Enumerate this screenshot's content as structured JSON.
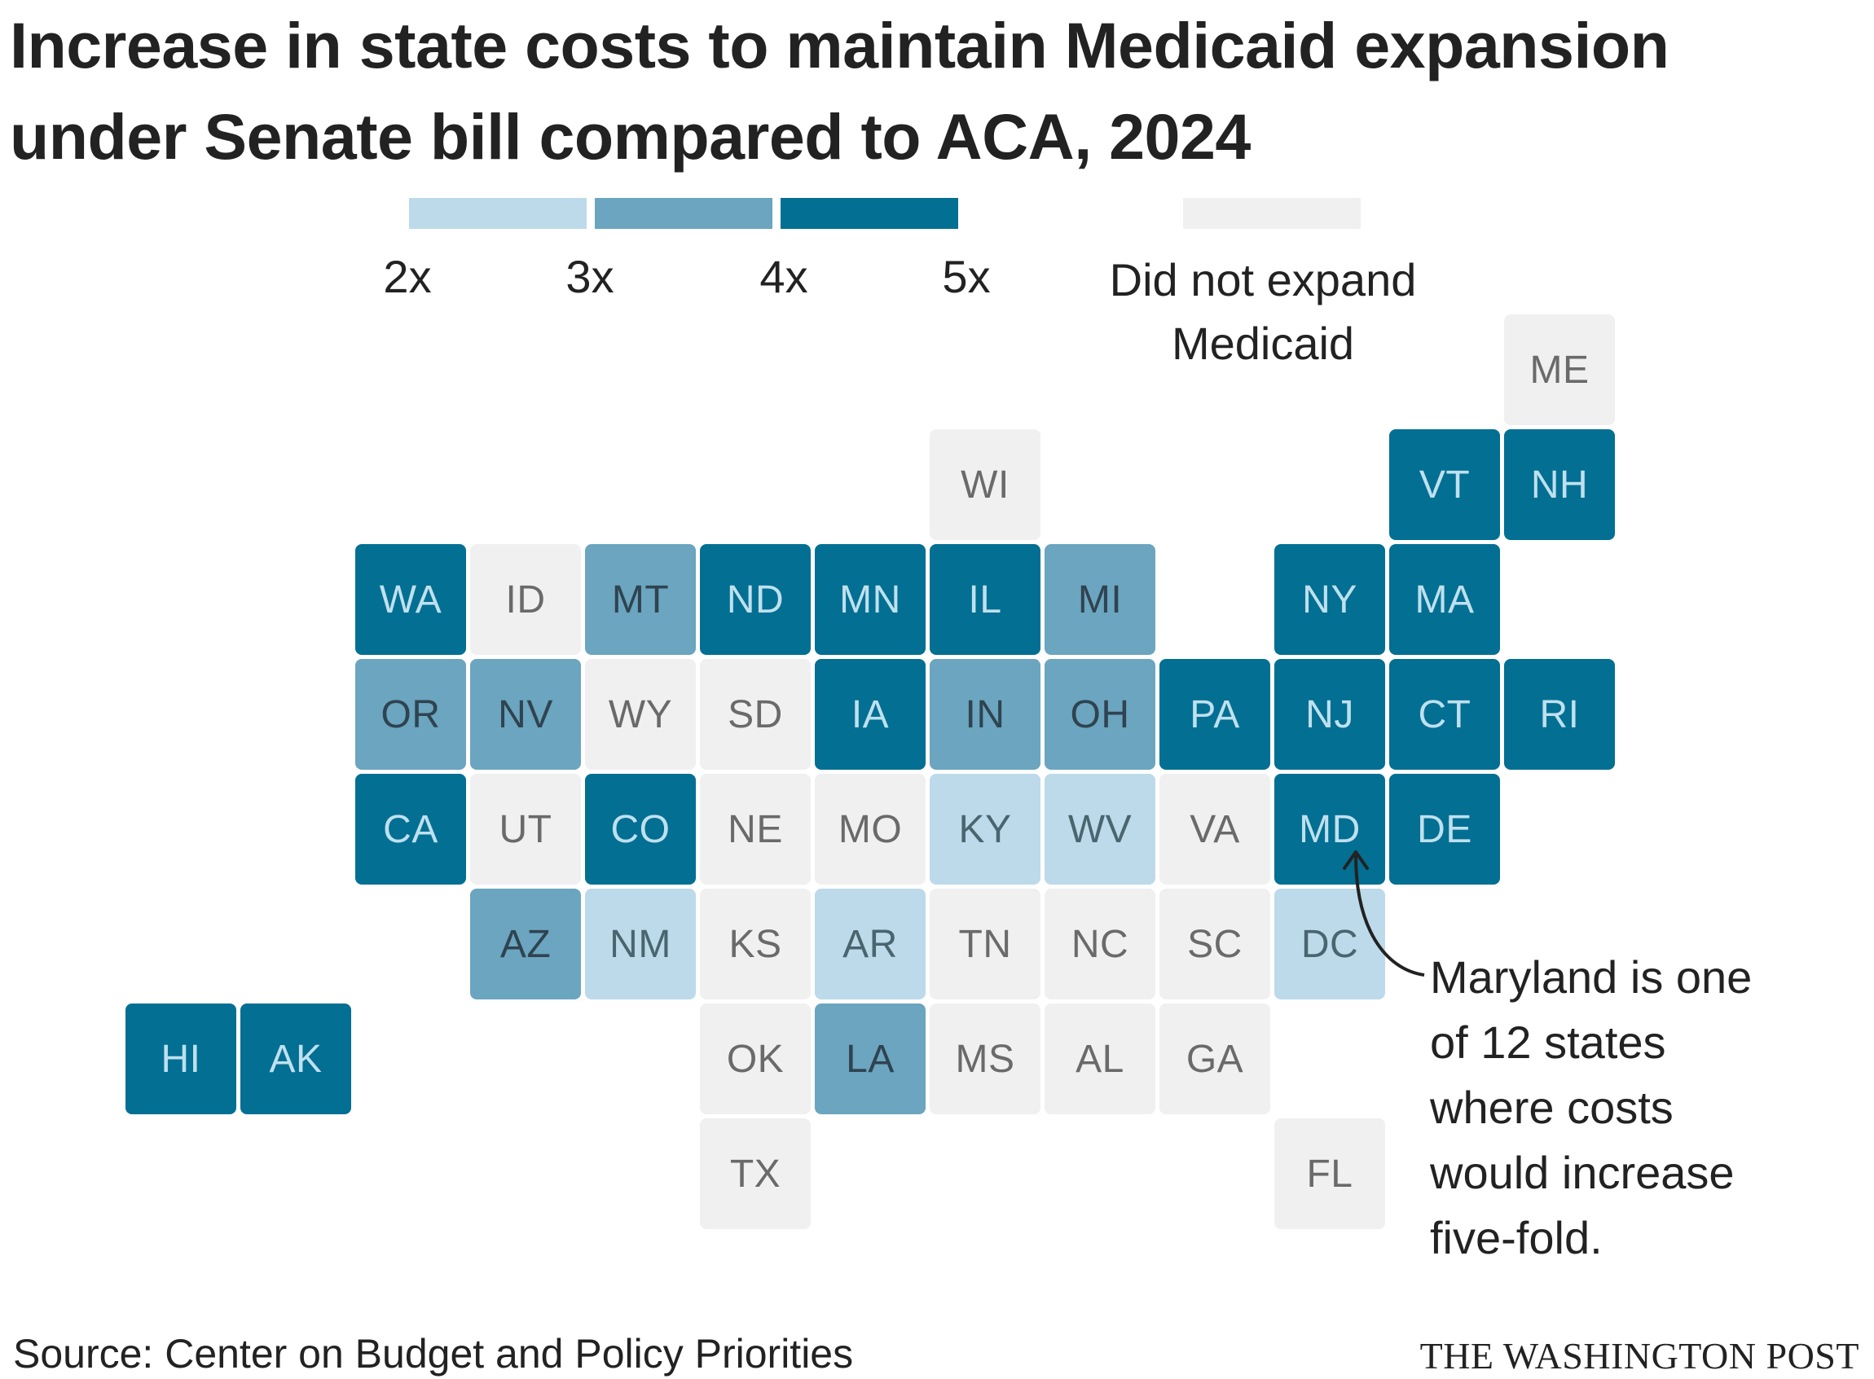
{
  "title": "Increase in state costs to maintain Medicaid expansion under Senate bill compared to ACA, 2024",
  "legend": {
    "ticks": [
      "2x",
      "3x",
      "4x",
      "5x"
    ],
    "not_expanded_label": "Did not expand Medicaid",
    "colors": {
      "bin_2_3": "#bcdaea",
      "bin_3_4": "#6ba5bf",
      "bin_4_5": "#026f93",
      "not_expanded": "#f0f0f0"
    }
  },
  "chart_data": {
    "type": "tile-map",
    "bins": [
      {
        "key": "bin_2_3",
        "range": [
          2,
          3
        ]
      },
      {
        "key": "bin_3_4",
        "range": [
          3,
          4
        ]
      },
      {
        "key": "bin_4_5",
        "range": [
          4,
          5
        ]
      },
      {
        "key": "not_expanded",
        "label": "Did not expand Medicaid"
      }
    ],
    "states": [
      {
        "code": "ME",
        "category": "not_expanded",
        "col": 10,
        "row": 0
      },
      {
        "code": "WI",
        "category": "not_expanded",
        "col": 5,
        "row": 1
      },
      {
        "code": "VT",
        "category": "bin_4_5",
        "col": 9,
        "row": 1
      },
      {
        "code": "NH",
        "category": "bin_4_5",
        "col": 10,
        "row": 1
      },
      {
        "code": "WA",
        "category": "bin_4_5",
        "col": 0,
        "row": 2
      },
      {
        "code": "ID",
        "category": "not_expanded",
        "col": 1,
        "row": 2
      },
      {
        "code": "MT",
        "category": "bin_3_4",
        "col": 2,
        "row": 2
      },
      {
        "code": "ND",
        "category": "bin_4_5",
        "col": 3,
        "row": 2
      },
      {
        "code": "MN",
        "category": "bin_4_5",
        "col": 4,
        "row": 2
      },
      {
        "code": "IL",
        "category": "bin_4_5",
        "col": 5,
        "row": 2
      },
      {
        "code": "MI",
        "category": "bin_3_4",
        "col": 6,
        "row": 2
      },
      {
        "code": "NY",
        "category": "bin_4_5",
        "col": 8,
        "row": 2
      },
      {
        "code": "MA",
        "category": "bin_4_5",
        "col": 9,
        "row": 2
      },
      {
        "code": "OR",
        "category": "bin_3_4",
        "col": 0,
        "row": 3
      },
      {
        "code": "NV",
        "category": "bin_3_4",
        "col": 1,
        "row": 3
      },
      {
        "code": "WY",
        "category": "not_expanded",
        "col": 2,
        "row": 3
      },
      {
        "code": "SD",
        "category": "not_expanded",
        "col": 3,
        "row": 3
      },
      {
        "code": "IA",
        "category": "bin_4_5",
        "col": 4,
        "row": 3
      },
      {
        "code": "IN",
        "category": "bin_3_4",
        "col": 5,
        "row": 3
      },
      {
        "code": "OH",
        "category": "bin_3_4",
        "col": 6,
        "row": 3
      },
      {
        "code": "PA",
        "category": "bin_4_5",
        "col": 7,
        "row": 3
      },
      {
        "code": "NJ",
        "category": "bin_4_5",
        "col": 8,
        "row": 3
      },
      {
        "code": "CT",
        "category": "bin_4_5",
        "col": 9,
        "row": 3
      },
      {
        "code": "RI",
        "category": "bin_4_5",
        "col": 10,
        "row": 3
      },
      {
        "code": "CA",
        "category": "bin_4_5",
        "col": 0,
        "row": 4
      },
      {
        "code": "UT",
        "category": "not_expanded",
        "col": 1,
        "row": 4
      },
      {
        "code": "CO",
        "category": "bin_4_5",
        "col": 2,
        "row": 4
      },
      {
        "code": "NE",
        "category": "not_expanded",
        "col": 3,
        "row": 4
      },
      {
        "code": "MO",
        "category": "not_expanded",
        "col": 4,
        "row": 4
      },
      {
        "code": "KY",
        "category": "bin_2_3",
        "col": 5,
        "row": 4
      },
      {
        "code": "WV",
        "category": "bin_2_3",
        "col": 6,
        "row": 4
      },
      {
        "code": "VA",
        "category": "not_expanded",
        "col": 7,
        "row": 4
      },
      {
        "code": "MD",
        "category": "bin_4_5",
        "col": 8,
        "row": 4
      },
      {
        "code": "DE",
        "category": "bin_4_5",
        "col": 9,
        "row": 4
      },
      {
        "code": "AZ",
        "category": "bin_3_4",
        "col": 1,
        "row": 5
      },
      {
        "code": "NM",
        "category": "bin_2_3",
        "col": 2,
        "row": 5
      },
      {
        "code": "KS",
        "category": "not_expanded",
        "col": 3,
        "row": 5
      },
      {
        "code": "AR",
        "category": "bin_2_3",
        "col": 4,
        "row": 5
      },
      {
        "code": "TN",
        "category": "not_expanded",
        "col": 5,
        "row": 5
      },
      {
        "code": "NC",
        "category": "not_expanded",
        "col": 6,
        "row": 5
      },
      {
        "code": "SC",
        "category": "not_expanded",
        "col": 7,
        "row": 5
      },
      {
        "code": "DC",
        "category": "bin_2_3",
        "col": 8,
        "row": 5
      },
      {
        "code": "HI",
        "category": "bin_4_5",
        "col": -2,
        "row": 6
      },
      {
        "code": "AK",
        "category": "bin_4_5",
        "col": -1,
        "row": 6
      },
      {
        "code": "OK",
        "category": "not_expanded",
        "col": 3,
        "row": 6
      },
      {
        "code": "LA",
        "category": "bin_3_4",
        "col": 4,
        "row": 6
      },
      {
        "code": "MS",
        "category": "not_expanded",
        "col": 5,
        "row": 6
      },
      {
        "code": "AL",
        "category": "not_expanded",
        "col": 6,
        "row": 6
      },
      {
        "code": "GA",
        "category": "not_expanded",
        "col": 7,
        "row": 6
      },
      {
        "code": "TX",
        "category": "not_expanded",
        "col": 3,
        "row": 7
      },
      {
        "code": "FL",
        "category": "not_expanded",
        "col": 8,
        "row": 7
      }
    ]
  },
  "annotation": {
    "target": "MD",
    "lines": [
      "Maryland is one",
      "of 12 states",
      "where costs",
      "would increase",
      "five-fold."
    ]
  },
  "footer": {
    "source": "Source: Center on Budget and Policy Priorities",
    "credit": "THE WASHINGTON POST"
  }
}
